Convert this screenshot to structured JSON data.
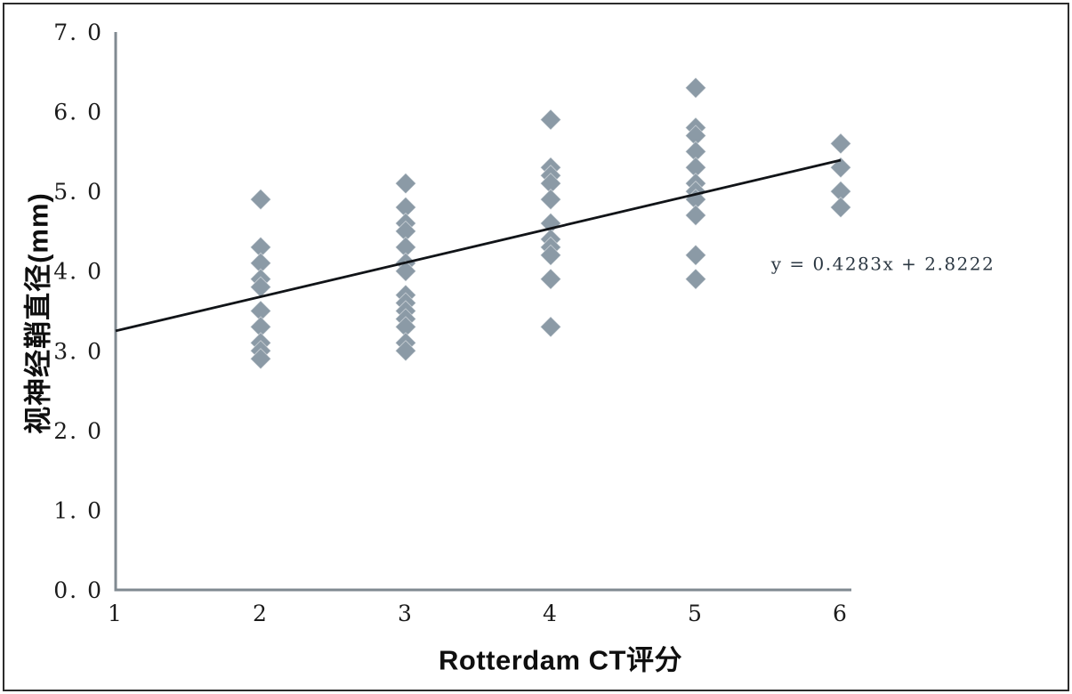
{
  "chart_data": {
    "type": "scatter",
    "title": "",
    "xlabel": "Rotterdam CT评分",
    "ylabel": "视神经鞘直径(mm)",
    "xlim": [
      1,
      6
    ],
    "ylim": [
      0.0,
      7.0
    ],
    "x_ticks": [
      "1",
      "2",
      "3",
      "4",
      "5",
      "6"
    ],
    "y_ticks": [
      "0. 0",
      "1. 0",
      "2. 0",
      "3. 0",
      "4. 0",
      "5. 0",
      "6. 0",
      "7. 0"
    ],
    "grid": false,
    "legend": false,
    "marker": "diamond",
    "marker_color": "#8b9aa6",
    "series": [
      {
        "name": "optic-nerve-sheath-diameter",
        "points": [
          {
            "x": 2,
            "y": [
              4.9,
              4.3,
              4.1,
              3.9,
              3.8,
              3.5,
              3.3,
              3.1,
              3.0,
              2.9
            ]
          },
          {
            "x": 3,
            "y": [
              5.1,
              4.8,
              4.6,
              4.5,
              4.3,
              4.1,
              4.0,
              3.7,
              3.6,
              3.5,
              3.4,
              3.3,
              3.1,
              3.0
            ]
          },
          {
            "x": 4,
            "y": [
              5.9,
              5.3,
              5.2,
              5.1,
              4.9,
              4.6,
              4.4,
              4.3,
              4.2,
              3.9,
              3.3
            ]
          },
          {
            "x": 5,
            "y": [
              6.3,
              5.8,
              5.7,
              5.5,
              5.3,
              5.1,
              5.0,
              4.9,
              4.7,
              4.2,
              3.9
            ]
          },
          {
            "x": 6,
            "y": [
              5.6,
              5.3,
              5.0,
              4.8
            ]
          }
        ]
      }
    ],
    "trendline": {
      "slope": 0.4283,
      "intercept": 2.8222,
      "x_start": 1,
      "x_end": 6,
      "label": "y = 0.4283x + 2.8222"
    },
    "annotation": {
      "text": "y = 0.4283x + 2.8222",
      "x": 5.52,
      "y": 4.09
    }
  },
  "colors": {
    "marker": "#8b9aa6",
    "axis": "#808a91",
    "trendline": "#111418",
    "text": "#1b1b1b",
    "background": "#ffffff",
    "border": "#2c2c2c"
  }
}
